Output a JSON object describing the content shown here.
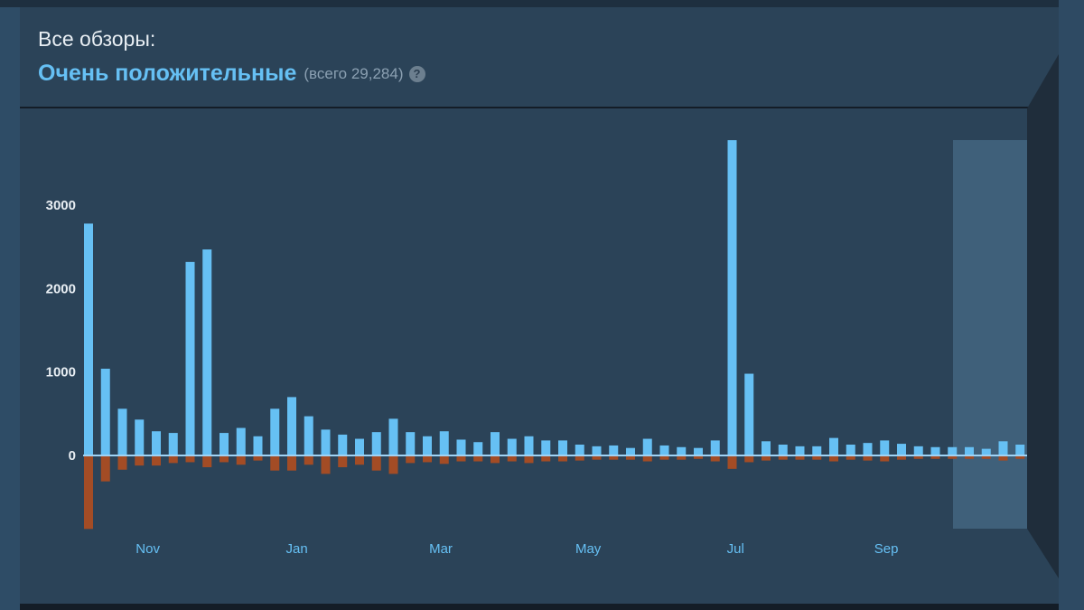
{
  "header": {
    "label": "Все обзоры:",
    "rating": "Очень положительные",
    "total": "(всего 29,284)",
    "help": "?"
  },
  "colors": {
    "positive": "#66c0f4",
    "negative": "#a34c25",
    "background": "#2b4358",
    "selection": "#3f607a"
  },
  "chart_data": {
    "type": "bar",
    "title": "Все обзоры",
    "yticks": [
      0,
      1000,
      2000,
      3000
    ],
    "ylim": [
      -900,
      3800
    ],
    "xticks": [
      {
        "label": "Nov",
        "index": 3.5
      },
      {
        "label": "Jan",
        "index": 12.3
      },
      {
        "label": "Mar",
        "index": 20.8
      },
      {
        "label": "May",
        "index": 29.5
      },
      {
        "label": "Jul",
        "index": 38.2
      },
      {
        "label": "Sep",
        "index": 47.1
      }
    ],
    "selection_range": [
      51.5,
      55.5
    ],
    "series": [
      {
        "name": "positive",
        "values": [
          2780,
          1040,
          560,
          430,
          290,
          270,
          2320,
          2470,
          270,
          330,
          230,
          560,
          700,
          470,
          310,
          250,
          200,
          280,
          440,
          280,
          230,
          290,
          190,
          160,
          280,
          200,
          230,
          180,
          180,
          130,
          110,
          120,
          90,
          200,
          120,
          100,
          90,
          180,
          3780,
          980,
          170,
          130,
          110,
          110,
          210,
          130,
          150,
          180,
          140,
          110,
          100,
          100,
          100,
          80,
          170,
          130
        ]
      },
      {
        "name": "negative",
        "values": [
          -870,
          -300,
          -160,
          -110,
          -110,
          -80,
          -70,
          -130,
          -70,
          -100,
          -50,
          -170,
          -170,
          -100,
          -210,
          -130,
          -100,
          -170,
          -210,
          -80,
          -70,
          -90,
          -60,
          -60,
          -80,
          -60,
          -80,
          -60,
          -60,
          -50,
          -40,
          -40,
          -40,
          -60,
          -40,
          -40,
          -30,
          -60,
          -150,
          -70,
          -50,
          -40,
          -40,
          -40,
          -60,
          -40,
          -50,
          -60,
          -40,
          -30,
          -30,
          -30,
          -30,
          -30,
          -50,
          -30
        ]
      }
    ]
  }
}
